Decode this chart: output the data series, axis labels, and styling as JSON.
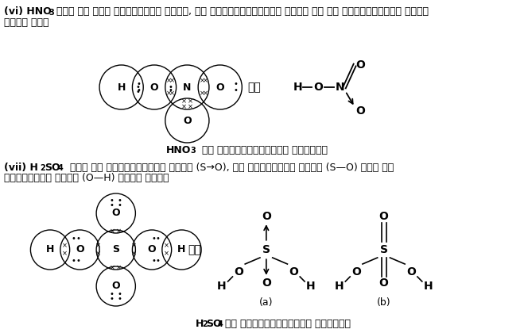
{
  "bg_color": "#ffffff",
  "fig_width": 6.64,
  "fig_height": 4.2,
  "dpi": 100,
  "line1": "(vi) HNO3 में दो एकल सहसंयोजक बन्ध, एक द्विसहसंयोजक बन्ध और एक उपसहसंयोजक बन्ध",
  "line2": "होता है।",
  "hno3_caption": "HNO3 की इलेक्ट्रॉनिक संरचना",
  "ya": "या",
  "line3": "(vii) H2SO4  में दो उपसहसंयोजक बन्ध (S→O), दो सहसंयोजक बन्ध (S—O) तथा दो",
  "line4": "सहसंयोजक बन्ध (O—H) होते हैं।",
  "h2so4_caption": "H2SO4 की इलेक्ट्रॉनिक संरचना",
  "label_a": "(a)",
  "label_b": "(b)"
}
